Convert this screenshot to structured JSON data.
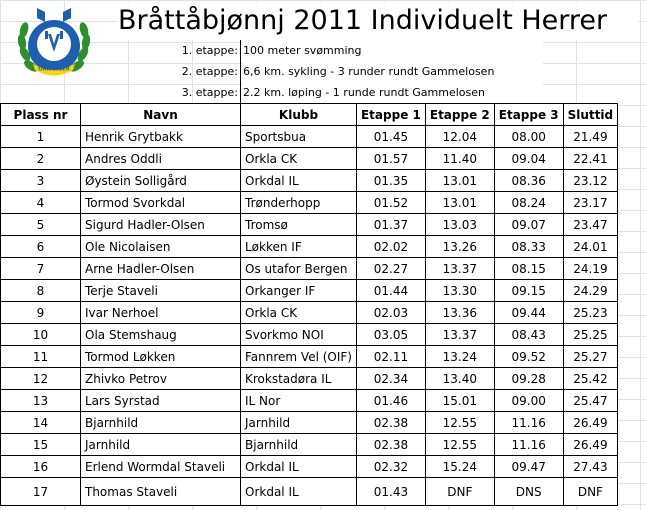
{
  "title": "Bråttåbjønnj 2011 Individuelt Herrer",
  "logo": {
    "icon": "orkanger-club-crest",
    "text": "ORKANGER"
  },
  "stages": [
    {
      "label": "1. etappe:",
      "desc": "100 meter svømming"
    },
    {
      "label": "2. etappe:",
      "desc": "6,6 km. sykling - 3 runder rundt Gammelosen"
    },
    {
      "label": "3. etappe:",
      "desc": "2.2 km. løping - 1 runde rundt Gammelosen"
    }
  ],
  "table": {
    "headers": [
      "Plass nr",
      "Navn",
      "Klubb",
      "Etappe 1",
      "Etappe 2",
      "Etappe 3",
      "Sluttid"
    ],
    "rows": [
      [
        "1",
        "Henrik Grytbakk",
        "Sportsbua",
        "01.45",
        "12.04",
        "08.00",
        "21.49"
      ],
      [
        "2",
        "Andres Oddli",
        "Orkla CK",
        "01.57",
        "11.40",
        "09.04",
        "22.41"
      ],
      [
        "3",
        "Øystein Solligård",
        "Orkdal IL",
        "01.35",
        "13.01",
        "08.36",
        "23.12"
      ],
      [
        "4",
        "Tormod Svorkdal",
        "Trønderhopp",
        "01.52",
        "13.01",
        "08.24",
        "23.17"
      ],
      [
        "5",
        "Sigurd Hadler-Olsen",
        "Tromsø",
        "01.37",
        "13.03",
        "09.07",
        "23.47"
      ],
      [
        "6",
        "Ole Nicolaisen",
        "Løkken IF",
        "02.02",
        "13.26",
        "08.33",
        "24.01"
      ],
      [
        "7",
        "Arne Hadler-Olsen",
        "Os utafor Bergen",
        "02.27",
        "13.37",
        "08.15",
        "24.19"
      ],
      [
        "8",
        "Terje Staveli",
        "Orkanger IF",
        "01.44",
        "13.30",
        "09.15",
        "24.29"
      ],
      [
        "9",
        "Ivar Nerhoel",
        "Orkla CK",
        "02.03",
        "13.36",
        "09.44",
        "25.23"
      ],
      [
        "10",
        "Ola Stemshaug",
        "Svorkmo NOI",
        "03.05",
        "13.37",
        "08.43",
        "25.25"
      ],
      [
        "11",
        "Tormod Løkken",
        "Fannrem Vel (OIF)",
        "02.11",
        "13.24",
        "09.52",
        "25.27"
      ],
      [
        "12",
        "Zhivko Petrov",
        "Krokstadøra IL",
        "02.34",
        "13.40",
        "09.28",
        "25.42"
      ],
      [
        "13",
        "Lars Syrstad",
        "IL Nor",
        "01.46",
        "15.01",
        "09.00",
        "25.47"
      ],
      [
        "14",
        "Bjarnhild",
        "Jarnhild",
        "02.38",
        "12.55",
        "11.16",
        "26.49"
      ],
      [
        "15",
        "Jarnhild",
        "Bjarnhild",
        "02.38",
        "12.55",
        "11.16",
        "26.49"
      ],
      [
        "16",
        "Erlend Wormdal Staveli",
        "Orkdal IL",
        "02.32",
        "15.24",
        "09.47",
        "27.43"
      ],
      [
        "17",
        "Thomas Staveli",
        "Orkdal IL",
        "01.43",
        "DNF",
        "DNS",
        "DNF"
      ]
    ]
  }
}
